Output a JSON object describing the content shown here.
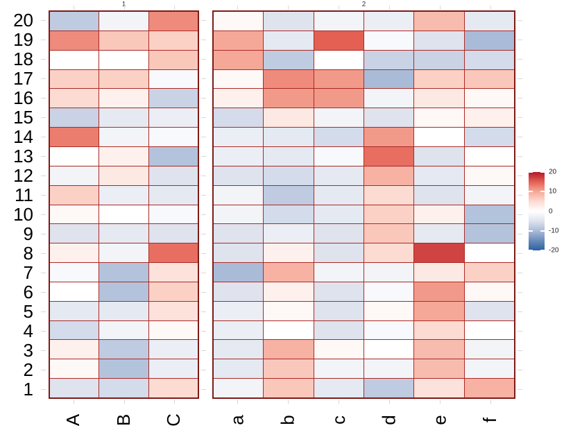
{
  "chart_data": {
    "type": "heatmap",
    "title": "",
    "rows": [
      "20",
      "19",
      "18",
      "17",
      "16",
      "15",
      "14",
      "13",
      "12",
      "11",
      "10",
      "9",
      "8",
      "7",
      "6",
      "5",
      "4",
      "3",
      "2",
      "1"
    ],
    "panels": [
      {
        "label": "1",
        "columns": [
          "A",
          "B",
          "C"
        ],
        "values": [
          [
            -8,
            -2,
            12
          ],
          [
            12,
            7,
            6
          ],
          [
            0,
            0,
            7
          ],
          [
            6,
            6,
            -1
          ],
          [
            5,
            2,
            -7
          ],
          [
            -7,
            -4,
            -3
          ],
          [
            13,
            -2,
            -1
          ],
          [
            0,
            2,
            -9
          ],
          [
            -2,
            3,
            -5
          ],
          [
            6,
            -3,
            -4
          ],
          [
            1,
            0,
            -1
          ],
          [
            -5,
            -4,
            -5
          ],
          [
            2,
            -2,
            14
          ],
          [
            -1,
            -9,
            4
          ],
          [
            0,
            -9,
            6
          ],
          [
            -4,
            -4,
            4
          ],
          [
            -6,
            -2,
            1
          ],
          [
            2,
            -8,
            -3
          ],
          [
            1,
            -9,
            -3
          ],
          [
            -5,
            -6,
            5
          ]
        ]
      },
      {
        "label": "2",
        "columns": [
          "a",
          "b",
          "c",
          "d",
          "e",
          "f"
        ],
        "values": [
          [
            1,
            -5,
            -2,
            -3,
            8,
            -4
          ],
          [
            10,
            -4,
            15,
            -1,
            -5,
            -10
          ],
          [
            10,
            -8,
            0,
            -7,
            -7,
            -6
          ],
          [
            1,
            12,
            11,
            -10,
            6,
            7
          ],
          [
            2,
            11,
            11,
            -2,
            3,
            1
          ],
          [
            -6,
            3,
            -2,
            -5,
            1,
            2
          ],
          [
            -3,
            -4,
            -6,
            11,
            0,
            -6
          ],
          [
            -3,
            -4,
            -1,
            14,
            -5,
            0
          ],
          [
            -5,
            -6,
            -4,
            9,
            -4,
            1
          ],
          [
            -2,
            -8,
            -4,
            5,
            -5,
            -2
          ],
          [
            -2,
            -6,
            -4,
            6,
            2,
            -9
          ],
          [
            -5,
            -3,
            -5,
            7,
            -4,
            -9
          ],
          [
            -5,
            2,
            -5,
            5,
            17,
            0
          ],
          [
            -10,
            9,
            -2,
            -2,
            3,
            6
          ],
          [
            -5,
            2,
            -5,
            -1,
            11,
            1
          ],
          [
            -3,
            1,
            -5,
            1,
            10,
            -5
          ],
          [
            -3,
            0,
            -5,
            -1,
            5,
            0
          ],
          [
            -4,
            9,
            1,
            0,
            8,
            -2
          ],
          [
            -4,
            7,
            -2,
            -2,
            8,
            -2
          ],
          [
            -2,
            7,
            -4,
            -8,
            4,
            9
          ]
        ]
      }
    ],
    "colorscale": {
      "min": -20,
      "max": 20,
      "positive_stops": [
        "#ffffff",
        "#fcdbd2",
        "#f6a898",
        "#e36052",
        "#b2182b"
      ],
      "negative_stops": [
        "#ffffff",
        "#dee3ee",
        "#aabbd8",
        "#698cb9",
        "#2b5fa4"
      ]
    },
    "legend": {
      "position": "right",
      "tick_labels": [
        "20",
        "10",
        "0",
        "-10",
        "-20"
      ],
      "tick_values": [
        20,
        10,
        0,
        -10,
        -20
      ]
    },
    "grid": true
  },
  "colors": {
    "cell_gridline": "#ab2924",
    "panel_border": "#7d1b18",
    "axis_tick": "#d8d8d8",
    "label_text": "#000000",
    "strip_text": "#333333",
    "legend_text": "#222222",
    "background": "#ffffff"
  },
  "layout_values": {
    "panel1_strip": "1",
    "panel2_strip": "2"
  }
}
